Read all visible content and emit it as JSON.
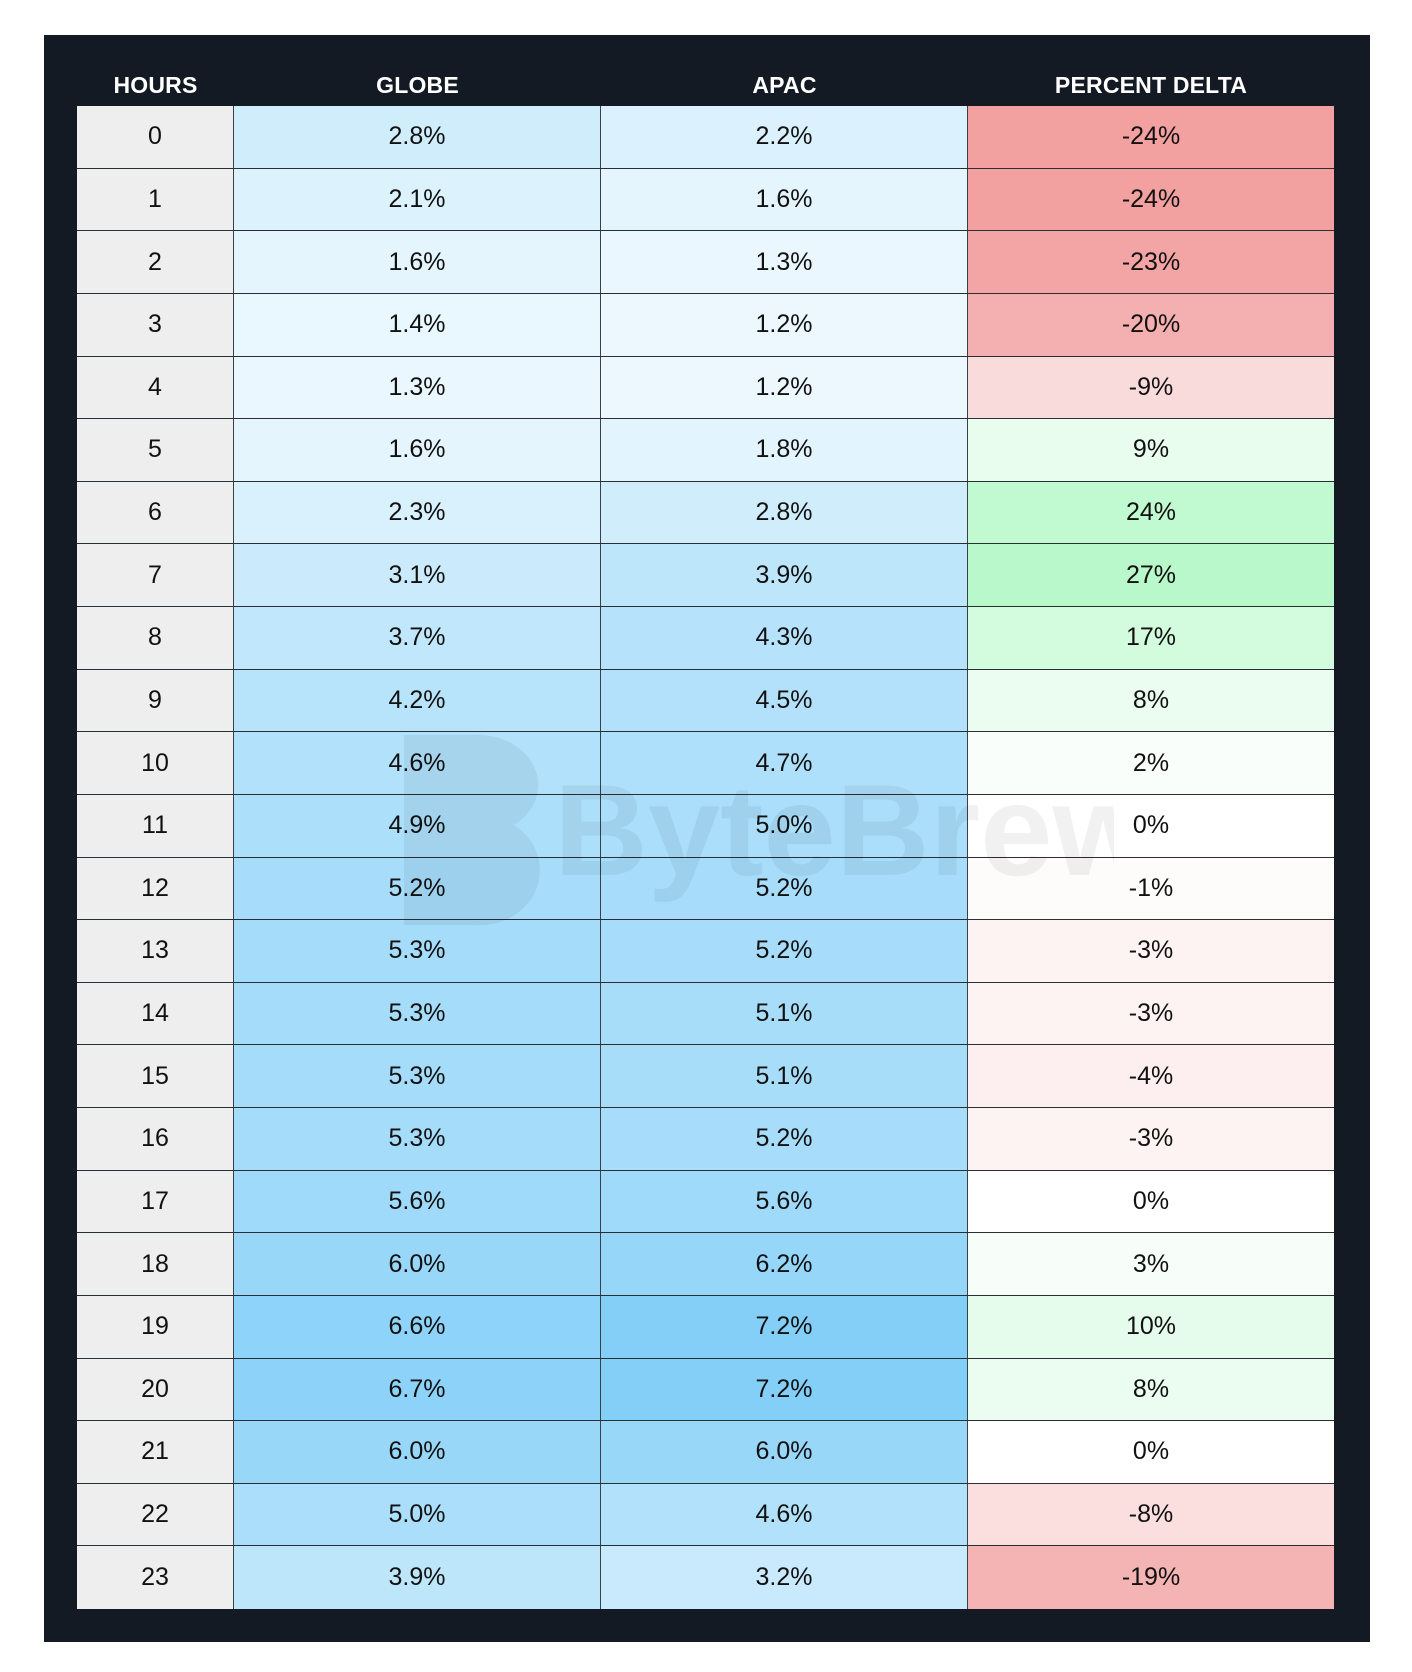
{
  "colors": {
    "panel_bg": "#141a23",
    "hours_cell_bg": "#eeeeee",
    "blue_low": "#ecf8fe",
    "blue_high": "#84cff8",
    "red_strong": "#f2a0a0",
    "green_strong": "#b9f8cb",
    "neutral": "#ffffff"
  },
  "watermark": "ByteBrew",
  "chart_data": {
    "type": "table",
    "columns": [
      "HOURS",
      "GLOBE",
      "APAC",
      "PERCENT DELTA"
    ],
    "rows": [
      {
        "hours": "0",
        "globe": "2.8%",
        "apac": "2.2%",
        "delta": "-24%"
      },
      {
        "hours": "1",
        "globe": "2.1%",
        "apac": "1.6%",
        "delta": "-24%"
      },
      {
        "hours": "2",
        "globe": "1.6%",
        "apac": "1.3%",
        "delta": "-23%"
      },
      {
        "hours": "3",
        "globe": "1.4%",
        "apac": "1.2%",
        "delta": "-20%"
      },
      {
        "hours": "4",
        "globe": "1.3%",
        "apac": "1.2%",
        "delta": "-9%"
      },
      {
        "hours": "5",
        "globe": "1.6%",
        "apac": "1.8%",
        "delta": "9%"
      },
      {
        "hours": "6",
        "globe": "2.3%",
        "apac": "2.8%",
        "delta": "24%"
      },
      {
        "hours": "7",
        "globe": "3.1%",
        "apac": "3.9%",
        "delta": "27%"
      },
      {
        "hours": "8",
        "globe": "3.7%",
        "apac": "4.3%",
        "delta": "17%"
      },
      {
        "hours": "9",
        "globe": "4.2%",
        "apac": "4.5%",
        "delta": "8%"
      },
      {
        "hours": "10",
        "globe": "4.6%",
        "apac": "4.7%",
        "delta": "2%"
      },
      {
        "hours": "11",
        "globe": "4.9%",
        "apac": "5.0%",
        "delta": "0%"
      },
      {
        "hours": "12",
        "globe": "5.2%",
        "apac": "5.2%",
        "delta": "-1%"
      },
      {
        "hours": "13",
        "globe": "5.3%",
        "apac": "5.2%",
        "delta": "-3%"
      },
      {
        "hours": "14",
        "globe": "5.3%",
        "apac": "5.1%",
        "delta": "-3%"
      },
      {
        "hours": "15",
        "globe": "5.3%",
        "apac": "5.1%",
        "delta": "-4%"
      },
      {
        "hours": "16",
        "globe": "5.3%",
        "apac": "5.2%",
        "delta": "-3%"
      },
      {
        "hours": "17",
        "globe": "5.6%",
        "apac": "5.6%",
        "delta": "0%"
      },
      {
        "hours": "18",
        "globe": "6.0%",
        "apac": "6.2%",
        "delta": "3%"
      },
      {
        "hours": "19",
        "globe": "6.6%",
        "apac": "7.2%",
        "delta": "10%"
      },
      {
        "hours": "20",
        "globe": "6.7%",
        "apac": "7.2%",
        "delta": "8%"
      },
      {
        "hours": "21",
        "globe": "6.0%",
        "apac": "6.0%",
        "delta": "0%"
      },
      {
        "hours": "22",
        "globe": "5.0%",
        "apac": "4.6%",
        "delta": "-8%"
      },
      {
        "hours": "23",
        "globe": "3.9%",
        "apac": "3.2%",
        "delta": "-19%"
      }
    ]
  }
}
